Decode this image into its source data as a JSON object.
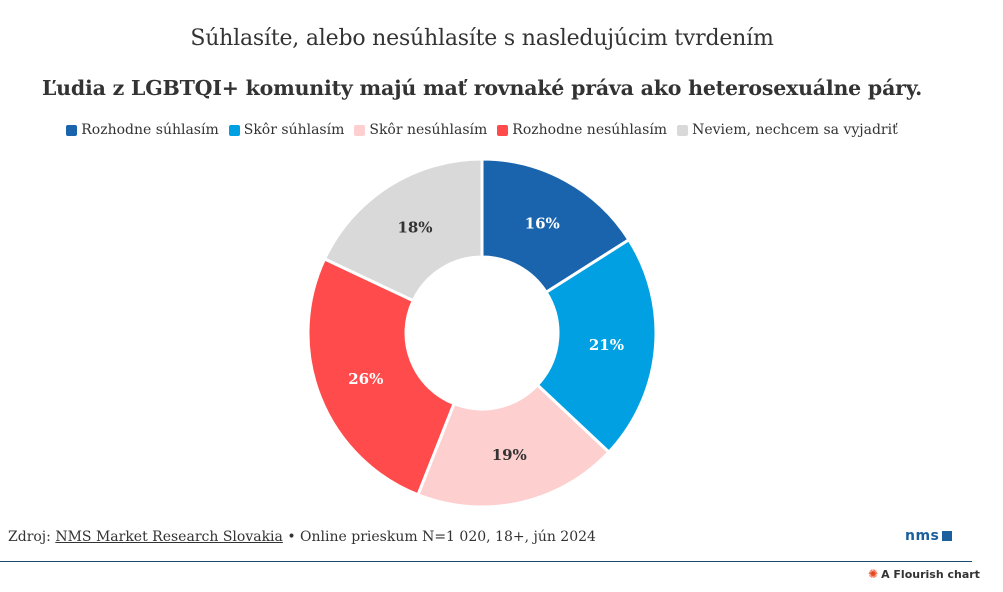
{
  "chart_data": {
    "type": "pie",
    "title": "Súhlasíte, alebo nesúhlasíte s nasledujúcim tvrdením",
    "subtitle": "Ľudia z LGBTQI+ komunity majú mať rovnaké práva ako heterosexuálne páry.",
    "donut": true,
    "legend_position": "top",
    "categories": [
      "Rozhodne súhlasím",
      "Skôr súhlasím",
      "Skôr nesúhlasím",
      "Rozhodne nesúhlasím",
      "Neviem, nechcem sa vyjadriť"
    ],
    "values": [
      16,
      21,
      19,
      26,
      18
    ],
    "value_labels": [
      "16%",
      "21%",
      "19%",
      "26%",
      "18%"
    ],
    "colors": [
      "#1a64ae",
      "#00a0e3",
      "#fecfcf",
      "#ff4b4b",
      "#d9d9d9"
    ],
    "label_colors": [
      "#ffffff",
      "#ffffff",
      "#333333",
      "#ffffff",
      "#333333"
    ]
  },
  "footer": {
    "prefix": "Zdroj: ",
    "source_link": "NMS Market Research Slovakia",
    "suffix": " • Online prieskum N=1 020, 18+, jún 2024"
  },
  "logo_text": "nms",
  "flourish_text": "A Flourish chart"
}
